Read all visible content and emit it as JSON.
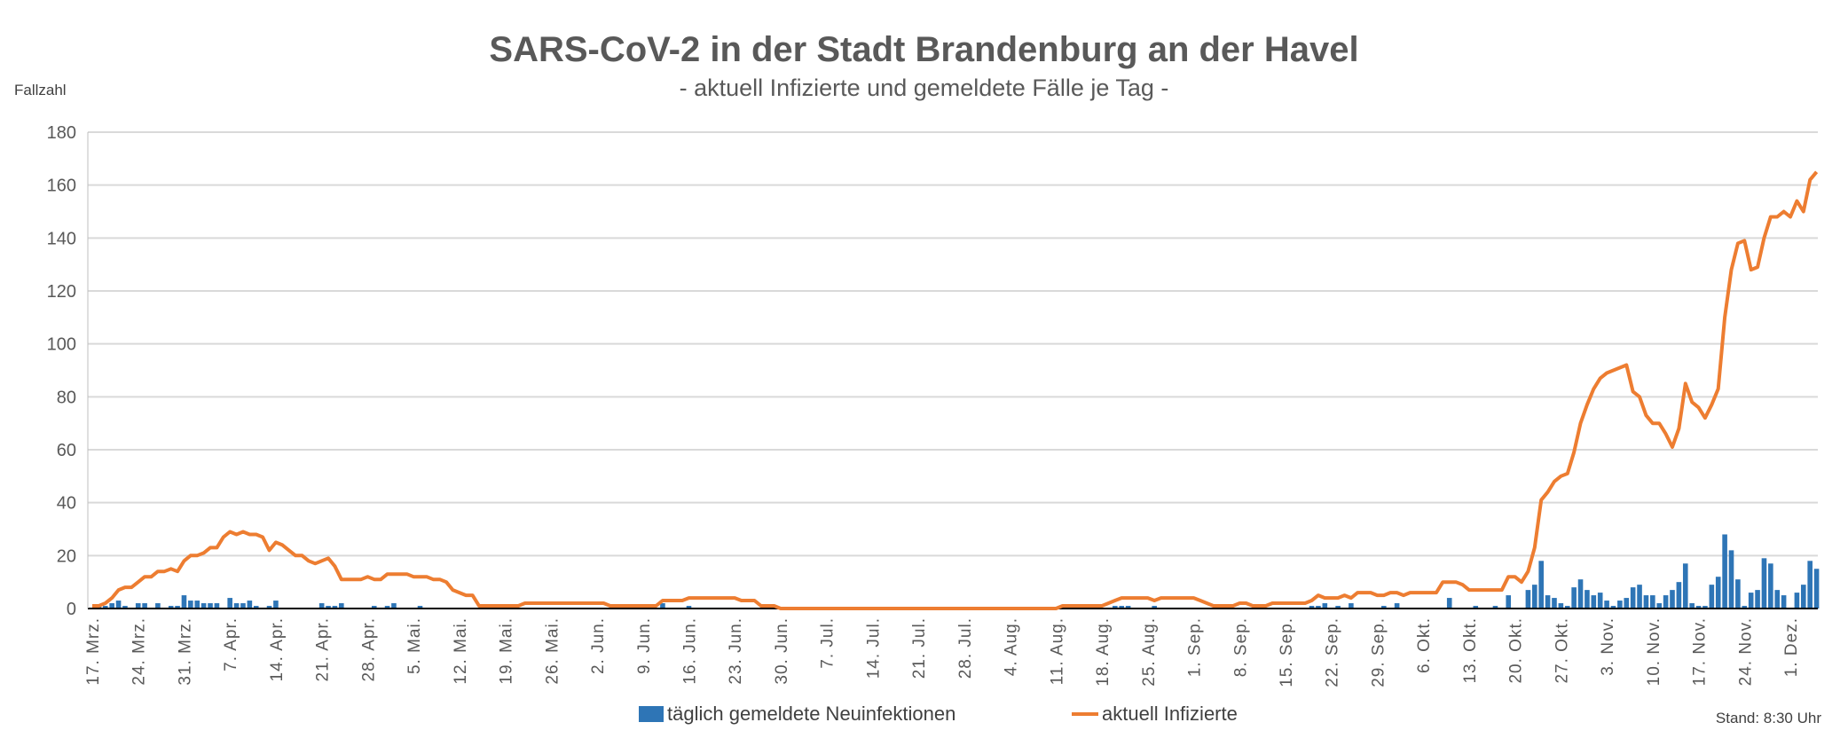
{
  "chart_data": {
    "type": "bar+line",
    "title": "SARS-CoV-2 in der Stadt Brandenburg an der Havel",
    "subtitle": "- aktuell Infizierte und gemeldete Fälle je Tag -",
    "ylabel": "Fallzahl",
    "xlabel": "",
    "ylim": [
      0,
      180
    ],
    "yticks": [
      "0",
      "20",
      "40",
      "60",
      "80",
      "100",
      "120",
      "140",
      "160",
      "180"
    ],
    "grid": true,
    "legend_position": "bottom",
    "start_date": "17. Mrz.",
    "xtick_labels": [
      "17. Mrz.",
      "24. Mrz.",
      "31. Mrz.",
      "7. Apr.",
      "14. Apr.",
      "21. Apr.",
      "28. Apr.",
      "5. Mai.",
      "12. Mai.",
      "19. Mai.",
      "26. Mai.",
      "2. Jun.",
      "9. Jun.",
      "16. Jun.",
      "23. Jun.",
      "30. Jun.",
      "7. Jul.",
      "14. Jul.",
      "21. Jul.",
      "28. Jul.",
      "4. Aug.",
      "11. Aug.",
      "18. Aug.",
      "25. Aug.",
      "1. Sep.",
      "8. Sep.",
      "15. Sep.",
      "22. Sep.",
      "29. Sep.",
      "6. Okt.",
      "13. Okt.",
      "20. Okt.",
      "27. Okt.",
      "3. Nov.",
      "10. Nov.",
      "17. Nov.",
      "24. Nov.",
      "1. Dez."
    ],
    "series": [
      {
        "name": "täglich gemeldete Neuinfektionen",
        "type": "bar",
        "color": "#2e75b6",
        "values": [
          0,
          1,
          1,
          2,
          3,
          1,
          0,
          2,
          2,
          0,
          2,
          0,
          1,
          1,
          5,
          3,
          3,
          2,
          2,
          2,
          0,
          4,
          2,
          2,
          3,
          1,
          0,
          1,
          3,
          0,
          0,
          0,
          0,
          0,
          0,
          2,
          1,
          1,
          2,
          0,
          0,
          0,
          0,
          1,
          0,
          1,
          2,
          0,
          0,
          0,
          1,
          0,
          0,
          0,
          0,
          0,
          0,
          0,
          0,
          0,
          0,
          0,
          0,
          0,
          0,
          0,
          0,
          0,
          0,
          0,
          0,
          0,
          0,
          0,
          0,
          0,
          0,
          0,
          0,
          0,
          0,
          0,
          0,
          0,
          0,
          0,
          0,
          2,
          0,
          0,
          0,
          1,
          0,
          0,
          0,
          0,
          0,
          0,
          0,
          0,
          0,
          0,
          0,
          0,
          0,
          0,
          0,
          0,
          0,
          0,
          0,
          0,
          0,
          0,
          0,
          0,
          0,
          0,
          0,
          0,
          0,
          0,
          0,
          0,
          0,
          0,
          0,
          0,
          0,
          0,
          0,
          0,
          0,
          0,
          0,
          0,
          0,
          0,
          0,
          0,
          0,
          0,
          0,
          0,
          0,
          0,
          0,
          0,
          0,
          0,
          0,
          0,
          0,
          0,
          0,
          0,
          1,
          1,
          1,
          0,
          0,
          0,
          1,
          0,
          0,
          0,
          0,
          0,
          0,
          0,
          0,
          0,
          0,
          0,
          0,
          0,
          0,
          0,
          0,
          0,
          0,
          0,
          0,
          0,
          0,
          0,
          1,
          1,
          2,
          0,
          1,
          0,
          2,
          0,
          0,
          0,
          0,
          1,
          0,
          2,
          0,
          0,
          0,
          0,
          0,
          0,
          0,
          4,
          0,
          0,
          0,
          1,
          0,
          0,
          1,
          0,
          5,
          0,
          0,
          7,
          9,
          18,
          5,
          4,
          2,
          1,
          8,
          11,
          7,
          5,
          6,
          3,
          1,
          3,
          4,
          8,
          9,
          5,
          5,
          2,
          5,
          7,
          10,
          17,
          2,
          1,
          1,
          9,
          12,
          28,
          22,
          11,
          1,
          6,
          7,
          19,
          17,
          7,
          5,
          0,
          6,
          9,
          18,
          15
        ]
      },
      {
        "name": "aktuell Infizierte",
        "type": "line",
        "color": "#ed7d31",
        "values": [
          1,
          1,
          2,
          4,
          7,
          8,
          8,
          10,
          12,
          12,
          14,
          14,
          15,
          14,
          18,
          20,
          20,
          21,
          23,
          23,
          27,
          29,
          28,
          29,
          28,
          28,
          27,
          22,
          25,
          24,
          22,
          20,
          20,
          18,
          17,
          18,
          19,
          16,
          11,
          11,
          11,
          11,
          12,
          11,
          11,
          13,
          13,
          13,
          13,
          12,
          12,
          12,
          11,
          11,
          10,
          7,
          6,
          5,
          5,
          1,
          1,
          1,
          1,
          1,
          1,
          1,
          2,
          2,
          2,
          2,
          2,
          2,
          2,
          2,
          2,
          2,
          2,
          2,
          2,
          1,
          1,
          1,
          1,
          1,
          1,
          1,
          1,
          3,
          3,
          3,
          3,
          4,
          4,
          4,
          4,
          4,
          4,
          4,
          4,
          3,
          3,
          3,
          1,
          1,
          1,
          0,
          0,
          0,
          0,
          0,
          0,
          0,
          0,
          0,
          0,
          0,
          0,
          0,
          0,
          0,
          0,
          0,
          0,
          0,
          0,
          0,
          0,
          0,
          0,
          0,
          0,
          0,
          0,
          0,
          0,
          0,
          0,
          0,
          0,
          0,
          0,
          0,
          0,
          0,
          0,
          0,
          0,
          0,
          1,
          1,
          1,
          1,
          1,
          1,
          1,
          2,
          3,
          4,
          4,
          4,
          4,
          4,
          3,
          4,
          4,
          4,
          4,
          4,
          4,
          3,
          2,
          1,
          1,
          1,
          1,
          2,
          2,
          1,
          1,
          1,
          2,
          2,
          2,
          2,
          2,
          2,
          3,
          5,
          4,
          4,
          4,
          5,
          4,
          6,
          6,
          6,
          5,
          5,
          6,
          6,
          5,
          6,
          6,
          6,
          6,
          6,
          10,
          10,
          10,
          9,
          7,
          7,
          7,
          7,
          7,
          7,
          12,
          12,
          10,
          14,
          23,
          41,
          44,
          48,
          50,
          51,
          59,
          70,
          77,
          83,
          87,
          89,
          90,
          91,
          92,
          82,
          80,
          73,
          70,
          70,
          66,
          61,
          68,
          85,
          78,
          76,
          72,
          77,
          83,
          110,
          128,
          138,
          139,
          128,
          129,
          140,
          148,
          148,
          150,
          148,
          154,
          150,
          162,
          165
        ]
      }
    ]
  },
  "footer": {
    "stand": "Stand: 8:30 Uhr"
  }
}
